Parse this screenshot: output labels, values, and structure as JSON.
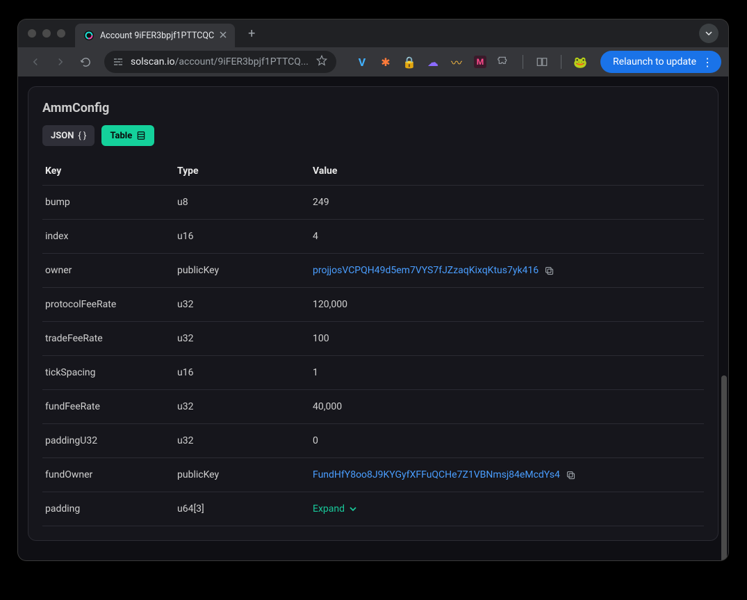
{
  "browser": {
    "tab_title": "Account 9iFER3bpjf1PTTCQC",
    "url_domain": "solscan.io",
    "url_path": "/account/9iFER3bpjf1PTTCQ...",
    "relaunch_label": "Relaunch to update",
    "new_tab_label": "+",
    "chevron_glyph": "⌄"
  },
  "card": {
    "title": "AmmConfig",
    "json_btn_label": "JSON",
    "json_btn_suffix": "{ }",
    "table_btn_label": "Table"
  },
  "columns": {
    "key": "Key",
    "type": "Type",
    "value": "Value"
  },
  "rows": [
    {
      "key": "bump",
      "type": "u8",
      "value": "249",
      "link": false,
      "expand": false
    },
    {
      "key": "index",
      "type": "u16",
      "value": "4",
      "link": false,
      "expand": false
    },
    {
      "key": "owner",
      "type": "publicKey",
      "value": "projjosVCPQH49d5em7VYS7fJZzaqKixqKtus7yk416",
      "link": true,
      "expand": false
    },
    {
      "key": "protocolFeeRate",
      "type": "u32",
      "value": "120,000",
      "link": false,
      "expand": false
    },
    {
      "key": "tradeFeeRate",
      "type": "u32",
      "value": "100",
      "link": false,
      "expand": false
    },
    {
      "key": "tickSpacing",
      "type": "u16",
      "value": "1",
      "link": false,
      "expand": false
    },
    {
      "key": "fundFeeRate",
      "type": "u32",
      "value": "40,000",
      "link": false,
      "expand": false
    },
    {
      "key": "paddingU32",
      "type": "u32",
      "value": "0",
      "link": false,
      "expand": false
    },
    {
      "key": "fundOwner",
      "type": "publicKey",
      "value": "FundHfY8oo8J9KYGyfXFFuQCHe7Z1VBNmsj84eMcdYs4",
      "link": true,
      "expand": false
    },
    {
      "key": "padding",
      "type": "u64[3]",
      "value": "Expand",
      "link": false,
      "expand": true
    }
  ],
  "icons": {
    "ext1": "V",
    "ext2": "✱",
    "ext3": "🔒",
    "ext4": "☁",
    "ext5": "〰",
    "ext6": "M",
    "ext7": "⧉",
    "ext8": "📖",
    "ext9": "🐸"
  }
}
